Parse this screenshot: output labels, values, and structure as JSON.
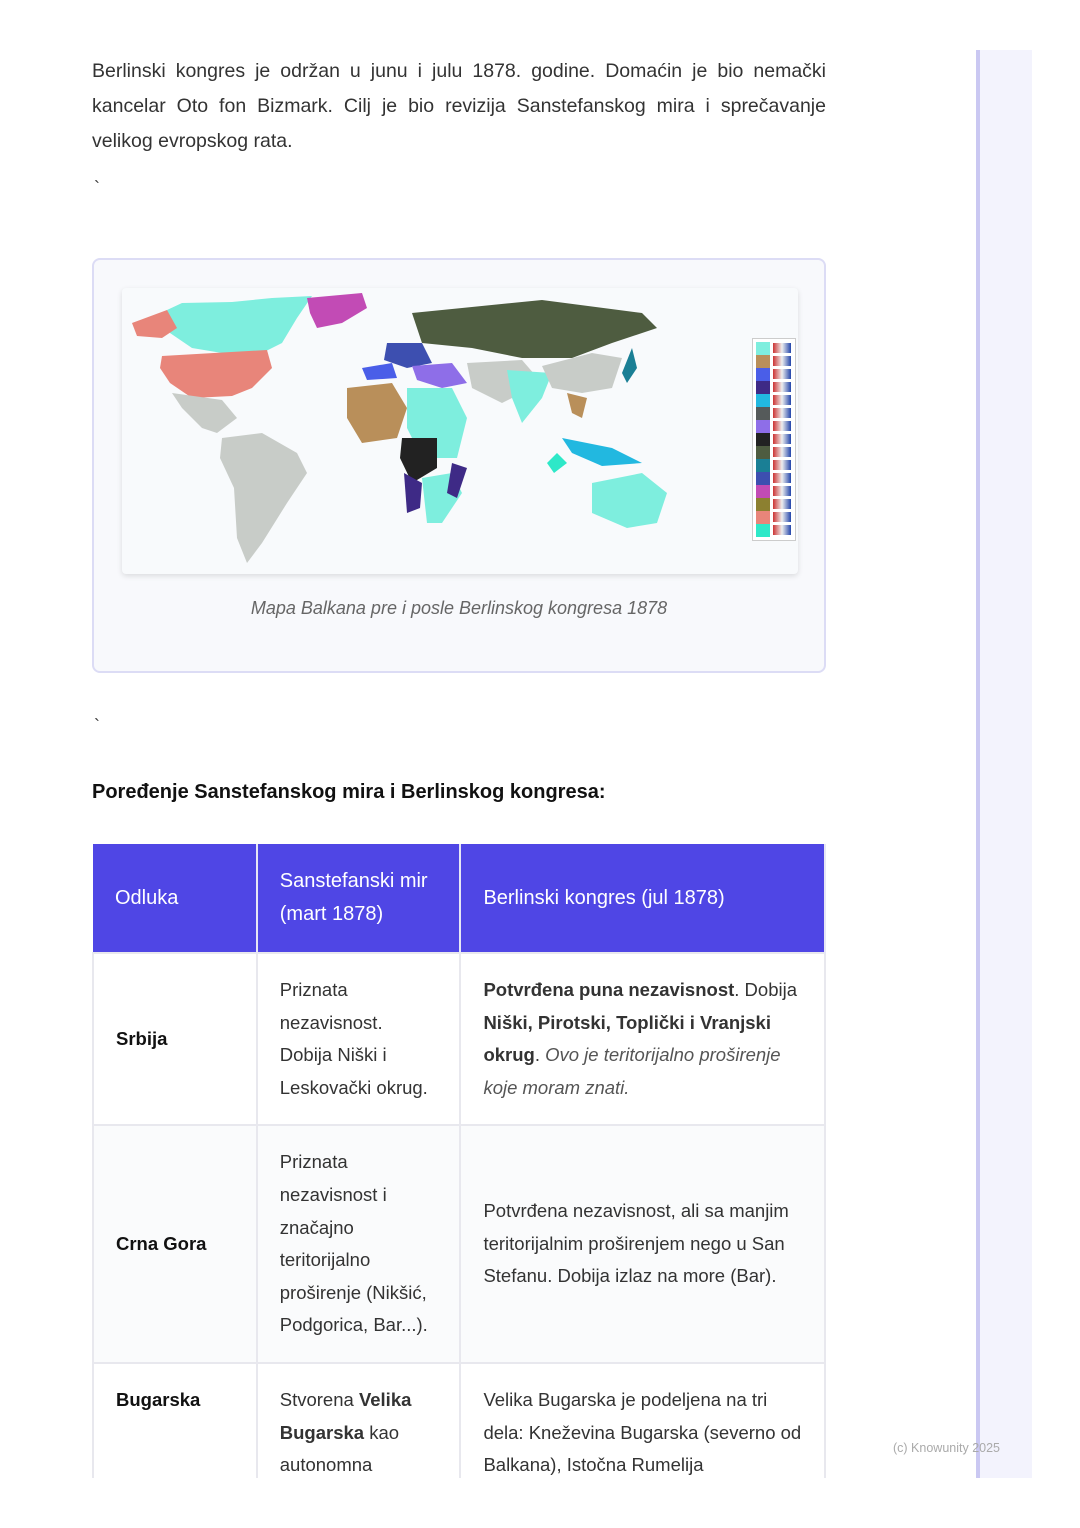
{
  "intro": "Berlinski kongres je održan u junu i julu 1878. godine. Domaćin je bio nemački kancelar Oto fon Bizmark. Cilj je bio revizija Sanstefanskog mira i sprečavanje velikog evropskog rata.",
  "backtick": "`",
  "figure": {
    "caption": "Mapa Balkana pre i posle Berlinskog kongresa 1878",
    "legend": [
      {
        "color": "#7eeede",
        "flag": "uk"
      },
      {
        "color": "#b98f5a",
        "flag": "france"
      },
      {
        "color": "#4a5ee8",
        "flag": "spain"
      },
      {
        "color": "#3e2a86",
        "flag": "portugal"
      },
      {
        "color": "#22b8e0",
        "flag": "argentina"
      },
      {
        "color": "#555a5a",
        "flag": "german-empire"
      },
      {
        "color": "#8e6ee8",
        "flag": "turkey"
      },
      {
        "color": "#222222",
        "flag": "belgium"
      },
      {
        "color": "#4e5c40",
        "flag": "russia"
      },
      {
        "color": "#1a7f95",
        "flag": "japan"
      },
      {
        "color": "#3d4fb0",
        "flag": "germany"
      },
      {
        "color": "#c24bb5",
        "flag": "denmark"
      },
      {
        "color": "#8c8030",
        "flag": "sweden-norway"
      },
      {
        "color": "#e8857a",
        "flag": "usa"
      },
      {
        "color": "#2ee8c8",
        "flag": "mexico"
      }
    ]
  },
  "heading": "Poređenje Sanstefanskog mira i Berlinskog kongresa:",
  "table": {
    "headers": [
      "Odluka",
      "Sanstefanski mir (mart 1878)",
      "Berlinski kongres (jul 1878)"
    ],
    "rows": [
      {
        "key": "Srbija",
        "san": "Priznata nezavisnost. Dobija Niški i Leskovački okrug.",
        "ber_b1": "Potvrđena puna nezavisnost",
        "ber_t1": ". Dobija ",
        "ber_b2": "Niški, Pirotski, Toplički i Vranjski okrug",
        "ber_t2": ". ",
        "ber_i": "Ovo je teritorijalno proširenje koje moram znati."
      },
      {
        "key": "Crna Gora",
        "san": "Priznata nezavisnost i značajno teritorijalno proširenje (Nikšić, Podgorica, Bar...).",
        "ber": "Potvrđena nezavisnost, ali sa manjim teritorijalnim proširenjem nego u San Stefanu. Dobija izlaz na more (Bar)."
      },
      {
        "key": "Bugarska",
        "san_t1": "Stvorena ",
        "san_b": "Velika Bugarska",
        "san_t2": " kao autonomna",
        "ber": "Velika Bugarska je podeljena na tri dela: Kneževina Bugarska (severno od Balkana), Istočna Rumelija"
      }
    ]
  },
  "footer": "(c) Knowunity 2025"
}
